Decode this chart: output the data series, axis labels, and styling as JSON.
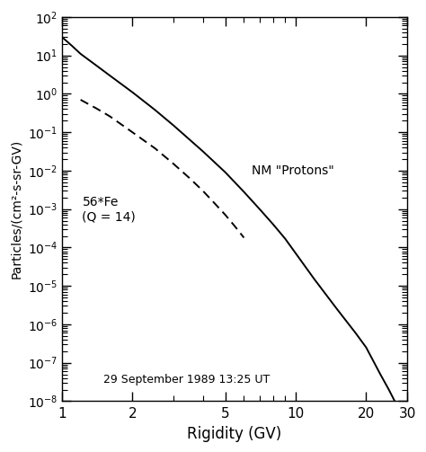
{
  "xlabel": "Rigidity (GV)",
  "ylabel": "Particles/(cm²-s-sr-GV)",
  "xlim": [
    1,
    30
  ],
  "ylim": [
    1e-08,
    100.0
  ],
  "date_label": "29 September 1989 13:25 UT",
  "proton_label": "NM \"Protons\"",
  "fe_label": "56*Fe\n(Q = 14)",
  "proton_color": "#000000",
  "fe_color": "#000000",
  "background_color": "#ffffff",
  "proton_rigidity": [
    1.0,
    1.1,
    1.2,
    1.4,
    1.6,
    2.0,
    2.5,
    3.0,
    4.0,
    5.0,
    6.0,
    7.0,
    8.0,
    9.0,
    10.0,
    12.0,
    15.0,
    18.0,
    20.0,
    23.0,
    25.0,
    27.0,
    29.0,
    30.0
  ],
  "proton_flux": [
    30,
    18,
    11,
    5.5,
    3.0,
    1.1,
    0.38,
    0.15,
    0.032,
    0.009,
    0.0028,
    0.001,
    0.0004,
    0.00017,
    7e-05,
    1.5e-05,
    2.5e-06,
    6e-07,
    2.5e-07,
    5e-08,
    2e-08,
    8e-09,
    3e-09,
    2e-09
  ],
  "fe_rigidity": [
    1.2,
    1.4,
    1.6,
    2.0,
    2.5,
    3.0,
    3.5,
    4.0,
    4.5,
    5.0,
    5.5,
    6.0
  ],
  "fe_flux": [
    0.7,
    0.42,
    0.26,
    0.1,
    0.038,
    0.015,
    0.0065,
    0.003,
    0.0014,
    0.0007,
    0.00035,
    0.00018
  ]
}
